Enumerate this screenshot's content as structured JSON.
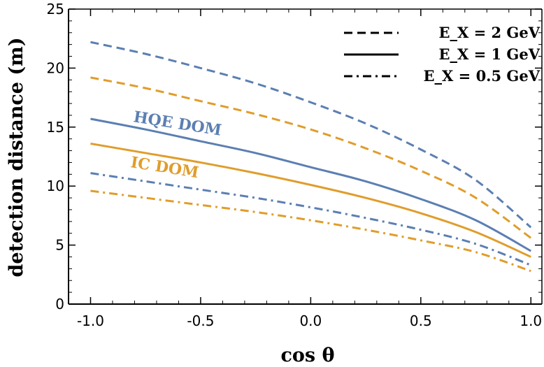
{
  "colors": {
    "hqe": "#5b7fb2",
    "ic": "#e09d2b",
    "axis": "#000000"
  },
  "chart_data": {
    "type": "line",
    "xlabel": "cos θ",
    "ylabel": "detection distance (m)",
    "xlim": [
      -1.1,
      1.05
    ],
    "ylim": [
      0,
      25
    ],
    "xticks": [
      -1.0,
      -0.5,
      0.0,
      0.5,
      1.0
    ],
    "xtick_labels": [
      "-1.0",
      "-0.5",
      "0.0",
      "0.5",
      "1.0"
    ],
    "yticks": [
      0,
      5,
      10,
      15,
      20,
      25
    ],
    "ytick_labels": [
      "0",
      "5",
      "10",
      "15",
      "20",
      "25"
    ],
    "grid": false,
    "legend_position": "top-right",
    "legend": [
      {
        "label": "E_X = 2 GeV",
        "style": "dashed"
      },
      {
        "label": "E_X = 1 GeV",
        "style": "solid"
      },
      {
        "label": "E_X = 0.5 GeV",
        "style": "dashdot"
      }
    ],
    "annotations": [
      {
        "text": "HQE DOM",
        "color_key": "hqe"
      },
      {
        "text": "IC DOM",
        "color_key": "ic"
      }
    ],
    "x": [
      -1.0,
      -0.75,
      -0.5,
      -0.25,
      0.0,
      0.25,
      0.5,
      0.75,
      1.0
    ],
    "series": [
      {
        "name": "HQE DOM, E_X = 2 GeV",
        "color_key": "hqe",
        "style": "dashed",
        "values": [
          22.2,
          21.2,
          20.0,
          18.7,
          17.1,
          15.3,
          13.1,
          10.5,
          6.5
        ]
      },
      {
        "name": "IC DOM, E_X = 2 GeV",
        "color_key": "ic",
        "style": "dashed",
        "values": [
          19.2,
          18.3,
          17.2,
          16.1,
          14.8,
          13.2,
          11.3,
          9.0,
          5.6
        ]
      },
      {
        "name": "HQE DOM, E_X = 1 GeV",
        "color_key": "hqe",
        "style": "solid",
        "values": [
          15.7,
          14.8,
          13.8,
          12.8,
          11.6,
          10.4,
          8.9,
          7.1,
          4.5
        ]
      },
      {
        "name": "IC DOM, E_X = 1 GeV",
        "color_key": "ic",
        "style": "solid",
        "values": [
          13.6,
          12.8,
          12.0,
          11.1,
          10.1,
          9.0,
          7.7,
          6.1,
          4.0
        ]
      },
      {
        "name": "HQE DOM, E_X = 0.5 GeV",
        "color_key": "hqe",
        "style": "dashdot",
        "values": [
          11.1,
          10.4,
          9.7,
          9.0,
          8.2,
          7.3,
          6.3,
          5.1,
          3.3
        ]
      },
      {
        "name": "IC DOM, E_X = 0.5 GeV",
        "color_key": "ic",
        "style": "dashdot",
        "values": [
          9.6,
          9.0,
          8.4,
          7.8,
          7.1,
          6.3,
          5.4,
          4.4,
          2.8
        ]
      }
    ]
  }
}
